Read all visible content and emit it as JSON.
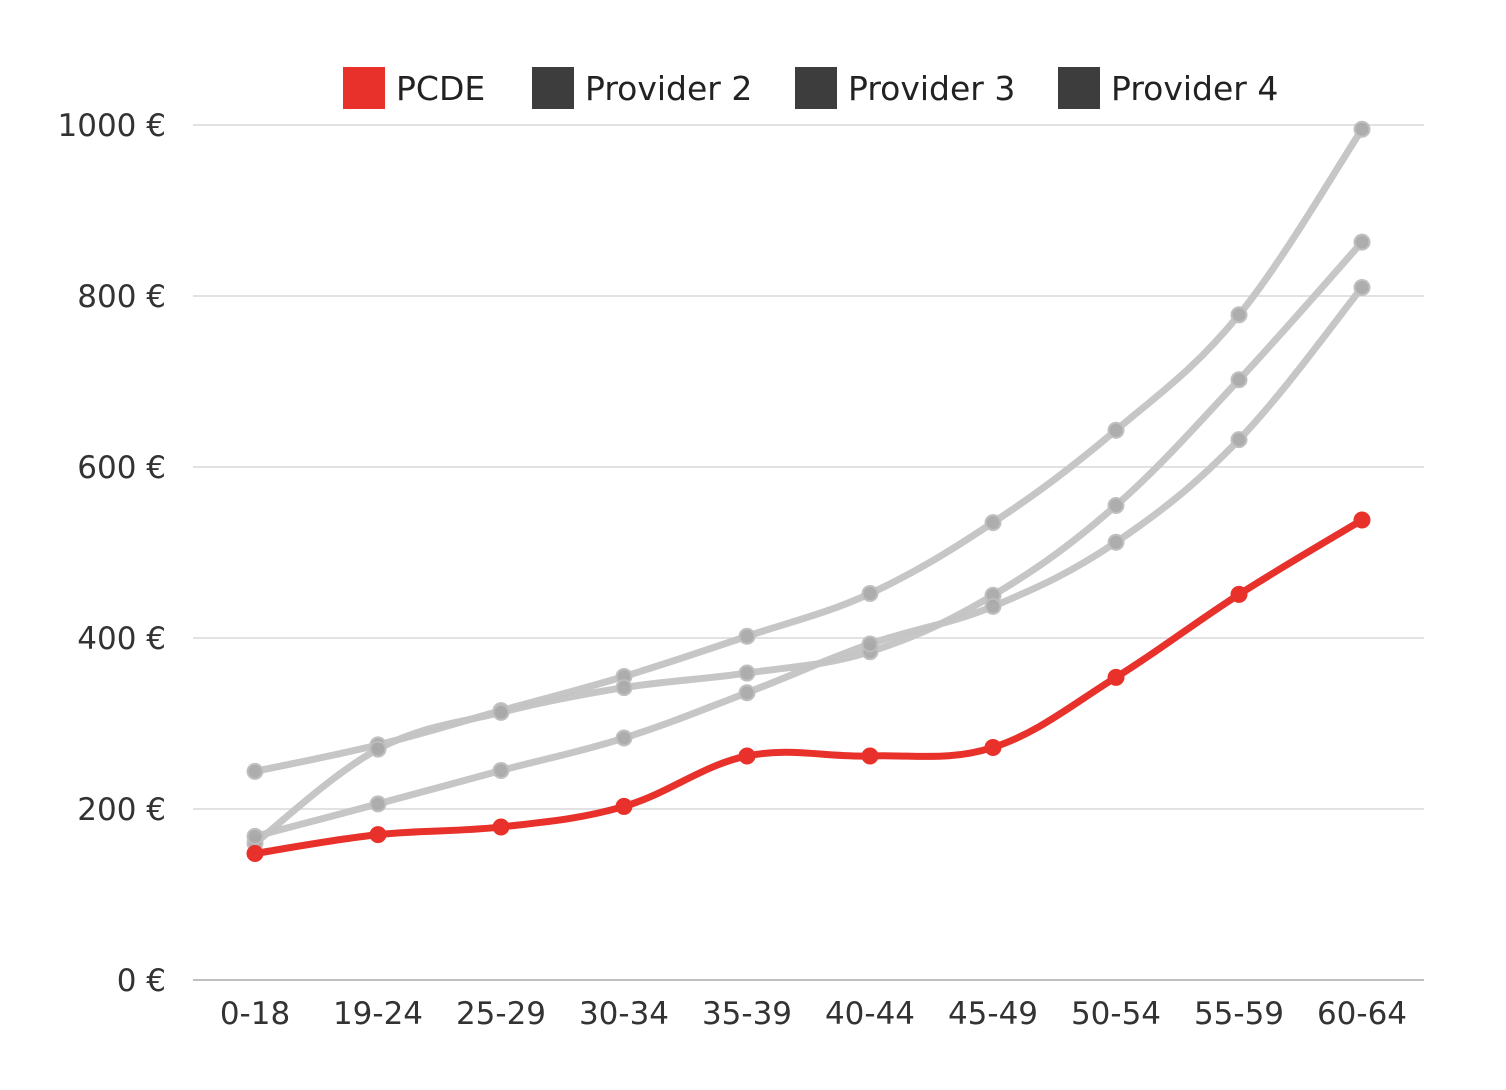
{
  "chart_data": {
    "type": "line",
    "title": "",
    "xlabel": "",
    "ylabel": "",
    "categories": [
      "0-18",
      "19-24",
      "25-29",
      "30-34",
      "35-39",
      "40-44",
      "45-49",
      "50-54",
      "55-59",
      "60-64"
    ],
    "ylim": [
      0,
      1000
    ],
    "yticks": [
      0,
      200,
      400,
      600,
      800,
      1000
    ],
    "ytick_labels": [
      "0 €",
      "200 €",
      "400 €",
      "600 €",
      "800 €",
      "1000 €"
    ],
    "grid": true,
    "legend_position": "top",
    "series": [
      {
        "name": "PCDE",
        "color": "#e8312b",
        "legend_color": "#e8312b",
        "values": [
          148,
          170,
          179,
          203,
          262,
          262,
          272,
          354,
          451,
          538
        ]
      },
      {
        "name": "Provider 2",
        "color": "#c4c4c4",
        "legend_color": "#3d3d3d",
        "values": [
          244,
          275,
          315,
          355,
          402,
          452,
          535,
          643,
          778,
          995
        ]
      },
      {
        "name": "Provider 3",
        "color": "#c4c4c4",
        "legend_color": "#3d3d3d",
        "values": [
          160,
          270,
          313,
          342,
          359,
          384,
          450,
          555,
          702,
          863
        ]
      },
      {
        "name": "Provider 4",
        "color": "#c4c4c4",
        "legend_color": "#3d3d3d",
        "values": [
          168,
          206,
          245,
          283,
          336,
          393,
          437,
          512,
          632,
          810
        ]
      }
    ]
  }
}
